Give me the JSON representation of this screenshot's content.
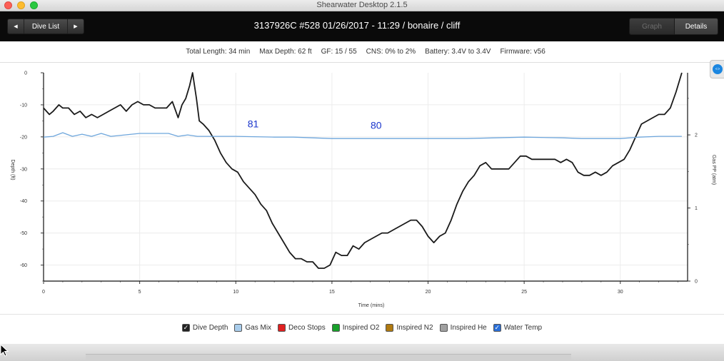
{
  "window": {
    "title": "Shearwater Desktop 2.1.5"
  },
  "toolbar": {
    "nav_label": "Dive List",
    "prev_arrow": "◀",
    "next_arrow": "▶",
    "dive_title": "3137926C #528 01/26/2017 - 11:29  / bonaire / cliff",
    "graph_label": "Graph",
    "details_label": "Details"
  },
  "summary": {
    "total_length": "Total Length: 34 min",
    "max_depth": "Max Depth: 62 ft",
    "gf": "GF: 15 / 55",
    "cns": "CNS: 0% to 2%",
    "battery": "Battery: 3.4V to 3.4V",
    "firmware": "Firmware: v56"
  },
  "legend": [
    {
      "label": "Dive Depth",
      "color": "#222222",
      "checked": true
    },
    {
      "label": "Gas Mix",
      "color": "#a9cdec",
      "checked": false
    },
    {
      "label": "Deco Stops",
      "color": "#e02020",
      "checked": false
    },
    {
      "label": "Inspired O2",
      "color": "#18a02a",
      "checked": false
    },
    {
      "label": "Inspired N2",
      "color": "#b07a10",
      "checked": false
    },
    {
      "label": "Inspired He",
      "color": "#a0a0a0",
      "checked": false
    },
    {
      "label": "Water Temp",
      "color": "#2a6fd8",
      "checked": true
    }
  ],
  "chart_data": {
    "type": "line",
    "xlabel": "Time (mins)",
    "ylabel": "Depth (ft)",
    "y2label": "Gas PP (atm)",
    "xlim": [
      0,
      33.5
    ],
    "ylim": [
      0,
      -65
    ],
    "y2lim": [
      0,
      2.85
    ],
    "x_ticks": [
      "0",
      "5",
      "10",
      "15",
      "20",
      "25",
      "30"
    ],
    "y_ticks": [
      "0",
      "-10",
      "-20",
      "-30",
      "-40",
      "-50",
      "-60"
    ],
    "y2_ticks": [
      "0",
      "1",
      "2"
    ],
    "grid": true,
    "series": [
      {
        "name": "Dive Depth",
        "color": "#1a1a1a",
        "x": [
          0,
          0.3,
          0.5,
          0.8,
          1.0,
          1.3,
          1.6,
          1.9,
          2.2,
          2.5,
          2.8,
          3.1,
          3.4,
          3.7,
          4.0,
          4.3,
          4.6,
          4.9,
          5.2,
          5.5,
          5.8,
          6.1,
          6.4,
          6.7,
          7.0,
          7.2,
          7.4,
          7.6,
          7.75,
          7.95,
          8.1,
          8.3,
          8.6,
          8.9,
          9.2,
          9.5,
          9.8,
          10.1,
          10.4,
          10.7,
          11.0,
          11.3,
          11.6,
          11.9,
          12.2,
          12.5,
          12.8,
          13.1,
          13.4,
          13.7,
          14.0,
          14.3,
          14.6,
          14.9,
          15.2,
          15.5,
          15.8,
          16.1,
          16.4,
          16.7,
          17.0,
          17.3,
          17.6,
          17.9,
          18.2,
          18.5,
          18.8,
          19.1,
          19.4,
          19.7,
          20.0,
          20.3,
          20.6,
          20.9,
          21.2,
          21.5,
          21.8,
          22.1,
          22.4,
          22.7,
          23.0,
          23.3,
          23.6,
          23.9,
          24.2,
          24.5,
          24.8,
          25.1,
          25.4,
          25.7,
          26.0,
          26.3,
          26.6,
          26.9,
          27.2,
          27.5,
          27.8,
          28.1,
          28.4,
          28.7,
          29.0,
          29.3,
          29.6,
          29.9,
          30.2,
          30.5,
          30.8,
          31.1,
          31.4,
          31.7,
          32.0,
          32.3,
          32.6,
          32.9,
          33.2
        ],
        "values": [
          -11,
          -13,
          -12,
          -10,
          -11,
          -11,
          -13,
          -12,
          -14,
          -13,
          -14,
          -13,
          -12,
          -11,
          -10,
          -12,
          -10,
          -9,
          -10,
          -10,
          -11,
          -11,
          -11,
          -9,
          -14,
          -10,
          -8,
          -4,
          0,
          -8,
          -15,
          -16,
          -18,
          -21,
          -25,
          -28,
          -30,
          -31,
          -34,
          -36,
          -38,
          -41,
          -43,
          -47,
          -50,
          -53,
          -56,
          -58,
          -58,
          -59,
          -59,
          -61,
          -61,
          -60,
          -56,
          -57,
          -57,
          -54,
          -55,
          -53,
          -52,
          -51,
          -50,
          -50,
          -49,
          -48,
          -47,
          -46,
          -46,
          -48,
          -51,
          -53,
          -51,
          -50,
          -46,
          -41,
          -37,
          -34,
          -32,
          -29,
          -28,
          -30,
          -30,
          -30,
          -30,
          -28,
          -26,
          -26,
          -27,
          -27,
          -27,
          -27,
          -27,
          -28,
          -27,
          -28,
          -31,
          -32,
          -32,
          -31,
          -32,
          -31,
          -29,
          -28,
          -27,
          -24,
          -20,
          -16,
          -15,
          -14,
          -13,
          -13,
          -11,
          -6,
          0
        ]
      },
      {
        "name": "Gas Mix",
        "color": "#6ea6dc",
        "axis": "y2",
        "x": [
          0,
          0.5,
          1.0,
          1.5,
          2.0,
          2.5,
          3.0,
          3.5,
          5,
          6,
          6.5,
          7.0,
          7.5,
          8.0,
          10,
          12,
          13,
          15,
          18,
          20,
          22,
          25,
          27,
          28,
          29,
          30,
          31,
          32,
          33.2
        ],
        "values": [
          1.97,
          1.98,
          2.03,
          1.98,
          2.01,
          1.98,
          2.02,
          1.98,
          2.02,
          2.02,
          2.02,
          1.98,
          2.0,
          1.98,
          1.98,
          1.97,
          1.97,
          1.95,
          1.95,
          1.95,
          1.95,
          1.97,
          1.96,
          1.95,
          1.95,
          1.95,
          1.97,
          1.98,
          1.98
        ]
      }
    ],
    "annotations": [
      {
        "text": "81",
        "x": 10.9,
        "y": -17
      },
      {
        "text": "80",
        "x": 17.3,
        "y": -17.5
      }
    ]
  }
}
